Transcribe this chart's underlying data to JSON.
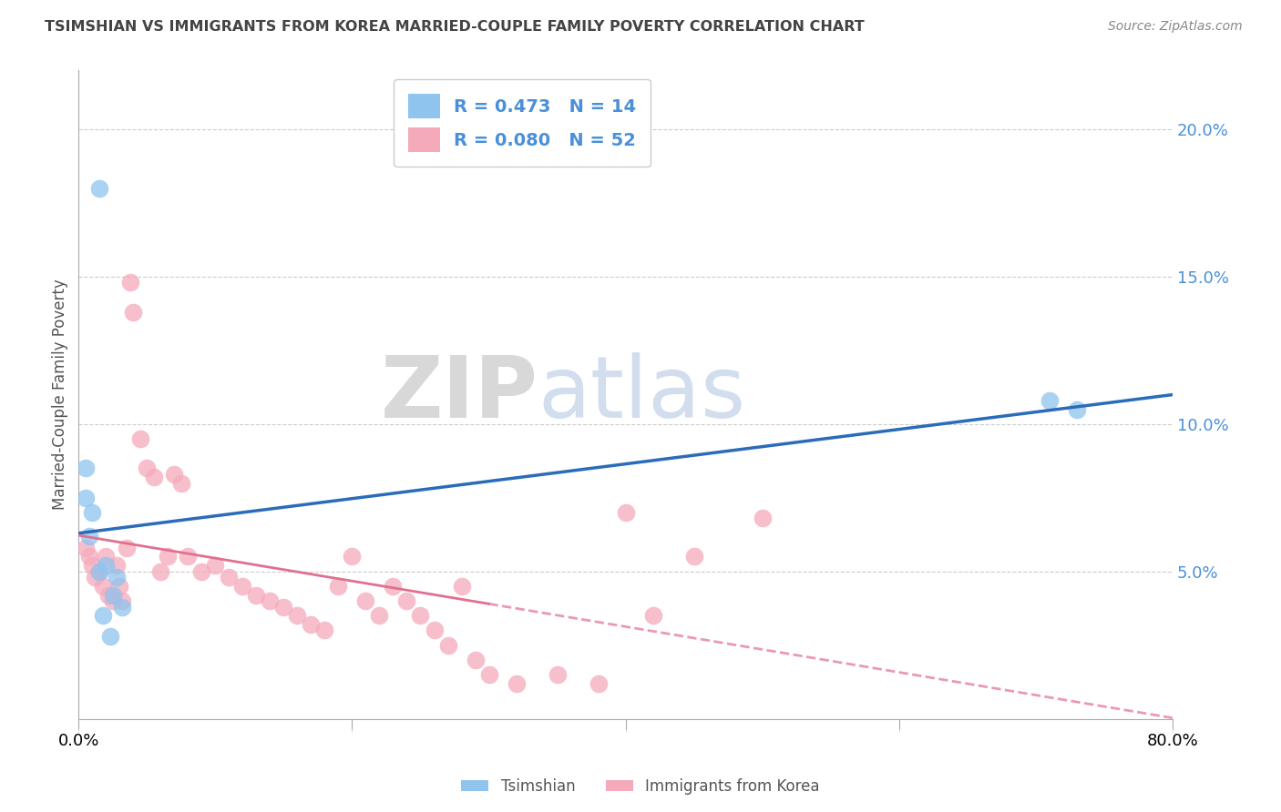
{
  "title": "TSIMSHIAN VS IMMIGRANTS FROM KOREA MARRIED-COUPLE FAMILY POVERTY CORRELATION CHART",
  "source": "Source: ZipAtlas.com",
  "ylabel": "Married-Couple Family Poverty",
  "xlim": [
    0,
    80
  ],
  "ylim": [
    0,
    22
  ],
  "xtick_labels": [
    "0.0%",
    "",
    "",
    "",
    "80.0%"
  ],
  "xtick_values": [
    0,
    20,
    40,
    60,
    80
  ],
  "ytick_labels": [
    "5.0%",
    "10.0%",
    "15.0%",
    "20.0%"
  ],
  "ytick_values": [
    5,
    10,
    15,
    20
  ],
  "background_color": "#ffffff",
  "watermark_zip": "ZIP",
  "watermark_atlas": "atlas",
  "tsimshian_color": "#8EC4EE",
  "korea_color": "#F5AABB",
  "tsimshian_line_color": "#2B6CB8",
  "korea_line_color": "#E07090",
  "tsimshian_R": 0.473,
  "tsimshian_N": 14,
  "korea_R": 0.08,
  "korea_N": 52,
  "tsimshian_x": [
    1.5,
    0.5,
    0.5,
    1.0,
    0.8,
    1.5,
    2.0,
    2.8,
    2.5,
    3.2,
    1.8,
    2.3,
    71.0,
    73.0
  ],
  "tsimshian_y": [
    18.0,
    8.5,
    7.5,
    7.0,
    6.2,
    5.0,
    5.2,
    4.8,
    4.2,
    3.8,
    3.5,
    2.8,
    10.8,
    10.5
  ],
  "korea_x": [
    0.5,
    0.8,
    1.0,
    1.2,
    1.5,
    1.8,
    2.0,
    2.2,
    2.5,
    2.8,
    3.0,
    3.2,
    3.5,
    3.8,
    4.0,
    4.5,
    5.0,
    5.5,
    6.0,
    6.5,
    7.0,
    7.5,
    8.0,
    9.0,
    10.0,
    11.0,
    12.0,
    13.0,
    14.0,
    15.0,
    16.0,
    17.0,
    18.0,
    19.0,
    20.0,
    21.0,
    22.0,
    23.0,
    24.0,
    25.0,
    26.0,
    27.0,
    28.0,
    29.0,
    30.0,
    32.0,
    35.0,
    38.0,
    40.0,
    42.0,
    45.0,
    50.0
  ],
  "korea_y": [
    5.8,
    5.5,
    5.2,
    4.8,
    5.0,
    4.5,
    5.5,
    4.2,
    4.0,
    5.2,
    4.5,
    4.0,
    5.8,
    14.8,
    13.8,
    9.5,
    8.5,
    8.2,
    5.0,
    5.5,
    8.3,
    8.0,
    5.5,
    5.0,
    5.2,
    4.8,
    4.5,
    4.2,
    4.0,
    3.8,
    3.5,
    3.2,
    3.0,
    4.5,
    5.5,
    4.0,
    3.5,
    4.5,
    4.0,
    3.5,
    3.0,
    2.5,
    4.5,
    2.0,
    1.5,
    1.2,
    1.5,
    1.2,
    7.0,
    3.5,
    5.5,
    6.8
  ],
  "korea_solid_end": 30,
  "korea_dashed_start": 30
}
